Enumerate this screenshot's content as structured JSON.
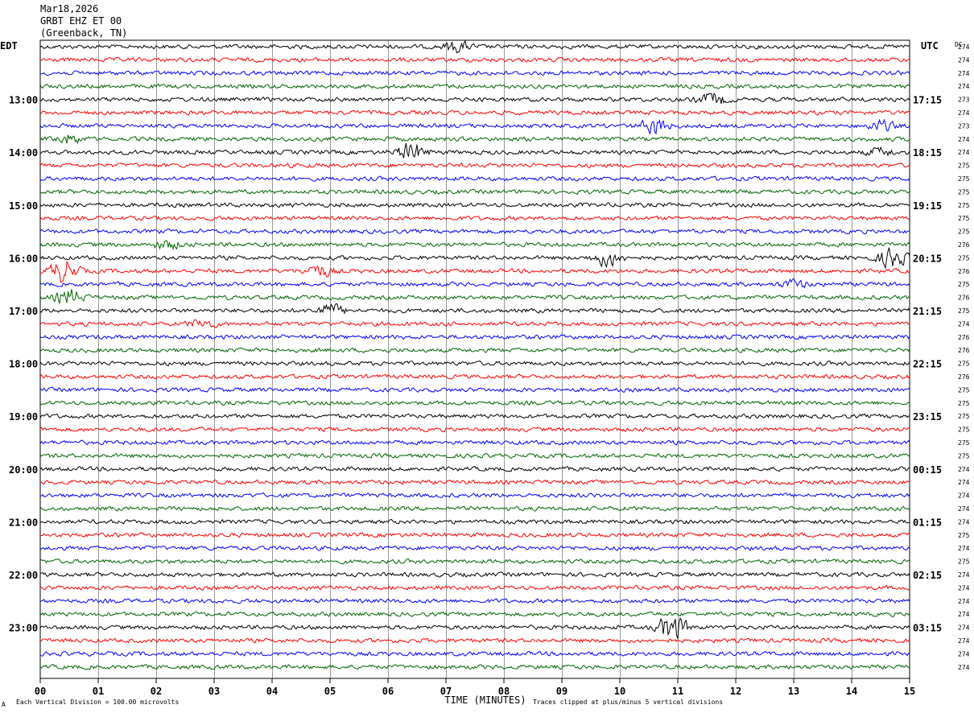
{
  "header": {
    "date": "Mar18,2026",
    "station": "GRBT EHZ ET 00",
    "location": "(Greenback, TN)"
  },
  "left_zone": "EDT",
  "right_zone": "UTC",
  "dc_header": "DC",
  "footer": {
    "scale_note": "Each Vertical Division =  100.00 microvolts",
    "clip_note": "Traces clipped at plus/minus 5 vertical divisions",
    "corner_mark": "A"
  },
  "colors": {
    "cycle": [
      "#000000",
      "#ff0000",
      "#0000ff",
      "#006400"
    ],
    "grid": "#000000"
  },
  "chart_data": {
    "type": "line",
    "xlabel": "TIME (MINUTES)",
    "xlim": [
      0,
      15
    ],
    "x_ticks": [
      "00",
      "01",
      "02",
      "03",
      "04",
      "05",
      "06",
      "07",
      "08",
      "09",
      "10",
      "11",
      "12",
      "13",
      "14",
      "15"
    ],
    "rows_per_hour": 4,
    "row_count": 48,
    "left_hour_labels": [
      {
        "row": 4,
        "label": "13:00"
      },
      {
        "row": 8,
        "label": "14:00"
      },
      {
        "row": 12,
        "label": "15:00"
      },
      {
        "row": 16,
        "label": "16:00"
      },
      {
        "row": 20,
        "label": "17:00"
      },
      {
        "row": 24,
        "label": "18:00"
      },
      {
        "row": 28,
        "label": "19:00"
      },
      {
        "row": 32,
        "label": "20:00"
      },
      {
        "row": 36,
        "label": "21:00"
      },
      {
        "row": 40,
        "label": "22:00"
      },
      {
        "row": 44,
        "label": "23:00"
      }
    ],
    "right_hour_labels": [
      {
        "row": 4,
        "label": "17:15"
      },
      {
        "row": 8,
        "label": "18:15"
      },
      {
        "row": 12,
        "label": "19:15"
      },
      {
        "row": 16,
        "label": "20:15"
      },
      {
        "row": 20,
        "label": "21:15"
      },
      {
        "row": 24,
        "label": "22:15"
      },
      {
        "row": 28,
        "label": "23:15"
      },
      {
        "row": 32,
        "label": "00:15"
      },
      {
        "row": 36,
        "label": "01:15"
      },
      {
        "row": 40,
        "label": "02:15"
      },
      {
        "row": 44,
        "label": "03:15"
      }
    ],
    "dc_offsets": [
      "274",
      "274",
      "274",
      "274",
      "273",
      "274",
      "273",
      "274",
      "274",
      "275",
      "275",
      "275",
      "275",
      "275",
      "275",
      "276",
      "275",
      "276",
      "275",
      "276",
      "275",
      "274",
      "276",
      "276",
      "275",
      "276",
      "275",
      "275",
      "275",
      "275",
      "275",
      "275",
      "274",
      "274",
      "274",
      "274",
      "274",
      "275",
      "274",
      "275",
      "274",
      "274",
      "274",
      "274",
      "274",
      "274",
      "274",
      "274"
    ],
    "amplitude": 2.2,
    "events": [
      {
        "row": 0,
        "minute": 7.2,
        "amp": 5
      },
      {
        "row": 4,
        "minute": 11.6,
        "amp": 6
      },
      {
        "row": 6,
        "minute": 10.6,
        "amp": 8
      },
      {
        "row": 6,
        "minute": 14.5,
        "amp": 5
      },
      {
        "row": 7,
        "minute": 0.5,
        "amp": 5
      },
      {
        "row": 8,
        "minute": 6.4,
        "amp": 9
      },
      {
        "row": 8,
        "minute": 14.5,
        "amp": 4
      },
      {
        "row": 15,
        "minute": 2.2,
        "amp": 4
      },
      {
        "row": 16,
        "minute": 9.8,
        "amp": 8
      },
      {
        "row": 16,
        "minute": 14.7,
        "amp": 10
      },
      {
        "row": 17,
        "minute": 0.4,
        "amp": 12
      },
      {
        "row": 17,
        "minute": 4.8,
        "amp": 6
      },
      {
        "row": 18,
        "minute": 13.0,
        "amp": 4
      },
      {
        "row": 19,
        "minute": 0.5,
        "amp": 8
      },
      {
        "row": 20,
        "minute": 5.0,
        "amp": 6
      },
      {
        "row": 21,
        "minute": 2.8,
        "amp": 4
      },
      {
        "row": 44,
        "minute": 10.9,
        "amp": 14
      }
    ]
  }
}
